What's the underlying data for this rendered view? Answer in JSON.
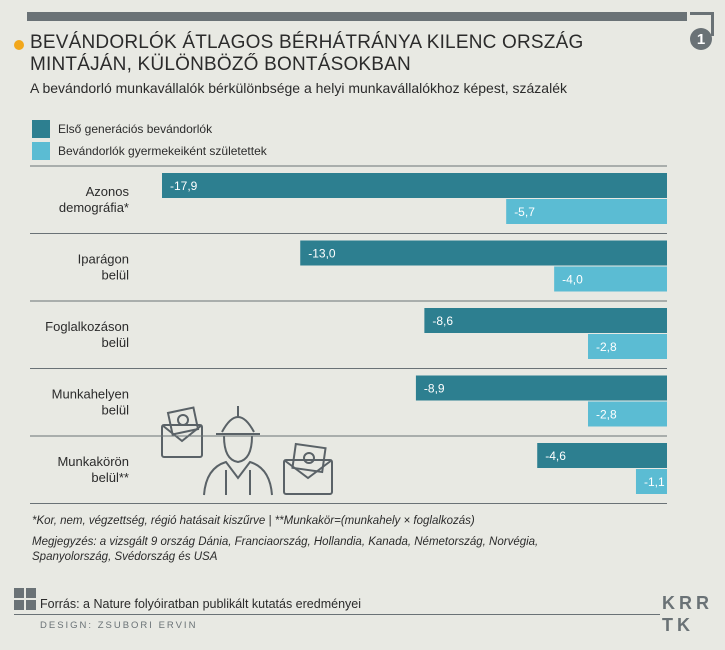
{
  "header": {
    "badge": "1",
    "title": "BEVÁNDORLÓK ÁTLAGOS BÉRHÁTRÁNYA KILENC ORSZÁG MINTÁJÁN, KÜLÖNBÖZŐ BONTÁSOKBAN",
    "subtitle": "A bevándorló munkavállalók bérkülönbsége a helyi munkavállalókhoz képest, százalék"
  },
  "colors": {
    "first_gen": "#2d7f90",
    "second_gen": "#5bbcd3",
    "accent": "#f2a71b",
    "grey": "#6a7276"
  },
  "chart_data": {
    "type": "bar",
    "orientation": "horizontal",
    "categories": [
      [
        "Azonos",
        "demográfia*"
      ],
      [
        "Iparágon",
        "belül"
      ],
      [
        "Foglalkozáson",
        "belül"
      ],
      [
        "Munkahelyen",
        "belül"
      ],
      [
        "Munkakörön",
        "belül**"
      ]
    ],
    "series": [
      {
        "name": "Első generációs bevándorlók",
        "values": [
          -17.9,
          -13.0,
          -8.6,
          -8.9,
          -4.6
        ],
        "labels": [
          "-17,9",
          "-13,0",
          "-8,6",
          "-8,9",
          "-4,6"
        ]
      },
      {
        "name": "Bevándorlók gyermekeiként születettek",
        "values": [
          -5.7,
          -4.0,
          -2.8,
          -2.8,
          -1.1
        ],
        "labels": [
          "-5,7",
          "-4,0",
          "-2,8",
          "-2,8",
          "-1,1"
        ]
      }
    ],
    "xlim": [
      -17.9,
      0
    ]
  },
  "notes": {
    "footnote": "*Kor, nem, végzettség, régió hatásait kiszűrve | **Munkakör=(munkahely × foglalkozás)",
    "remark": "Megjegyzés: a vizsgált 9 ország Dánia, Franciaország, Hollandia, Kanada, Németország, Norvégia, Spanyolország, Svédország és USA"
  },
  "footer": {
    "source": "Forrás: a Nature folyóiratban publikált kutatás eredményei",
    "design": "DESIGN: ZSUBORI ERVIN",
    "logo_top": "KRR",
    "logo_bottom": "TK"
  }
}
